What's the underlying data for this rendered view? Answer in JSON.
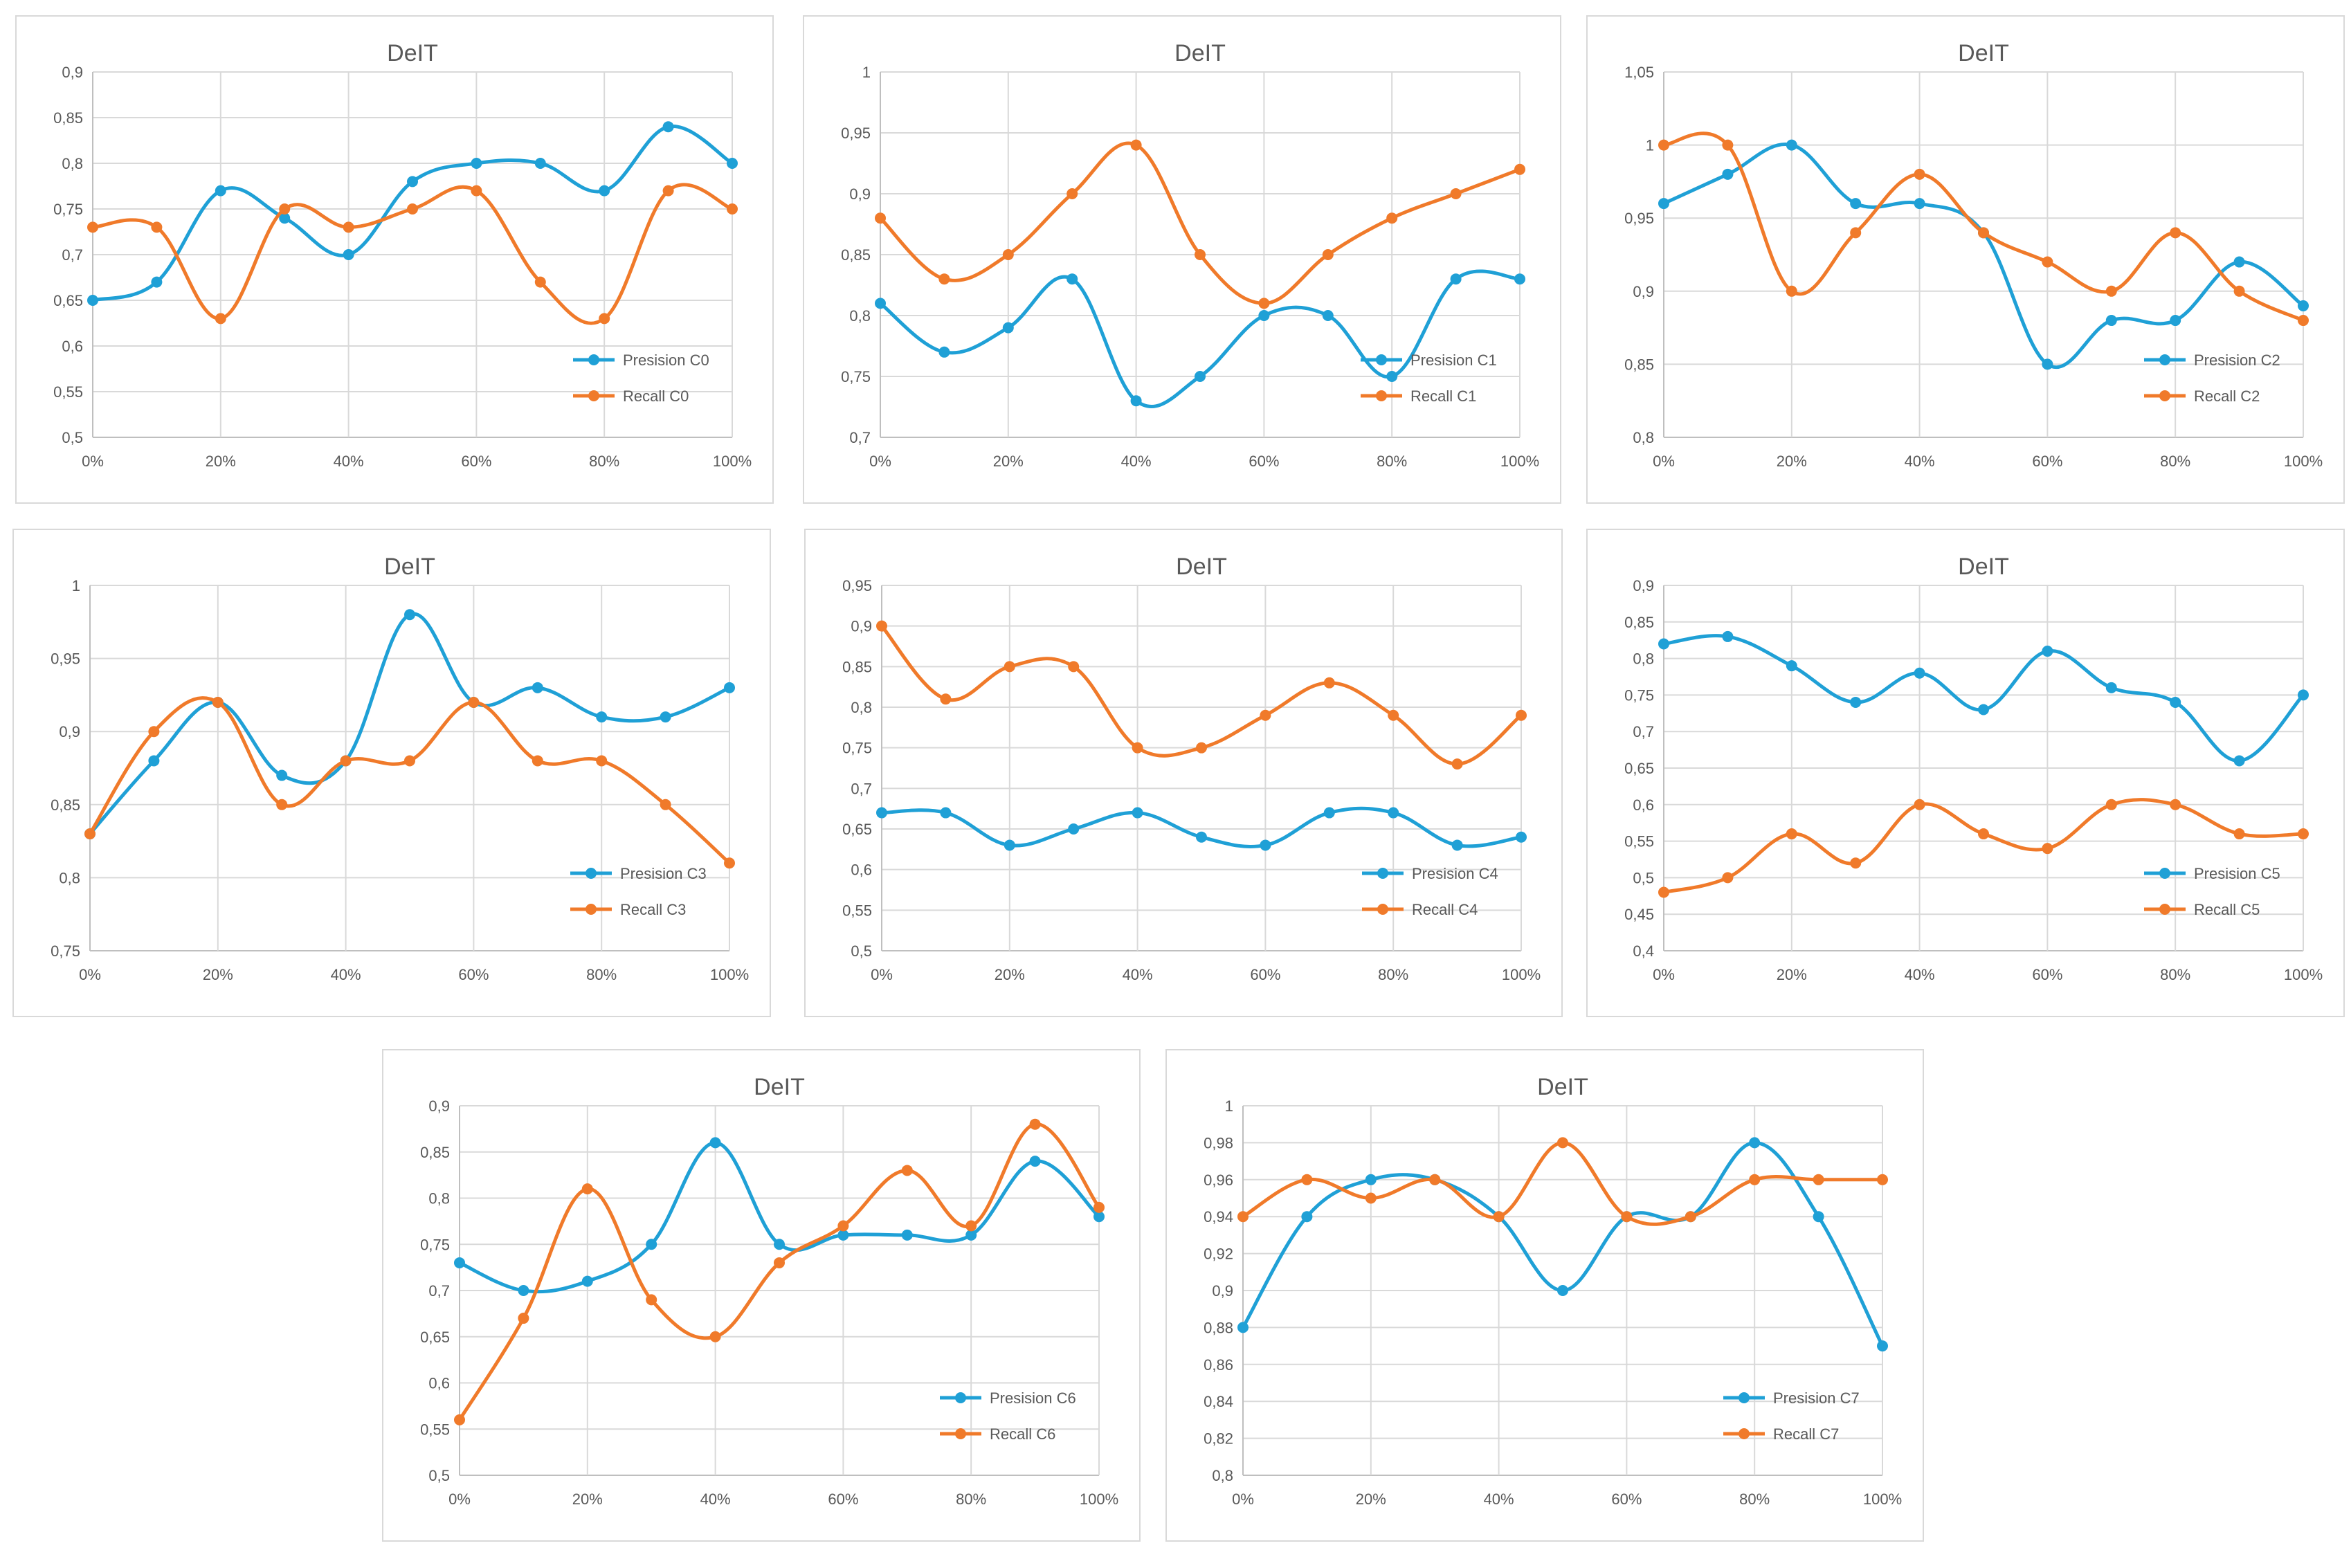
{
  "colors": {
    "precision": "#1fa0d6",
    "recall": "#f07a2a"
  },
  "x_ticks": [
    "0%",
    "20%",
    "40%",
    "60%",
    "80%",
    "100%"
  ],
  "chart_data": [
    {
      "type": "line",
      "title": "DeIT",
      "xlabel": "",
      "ylabel": "",
      "x": [
        0,
        10,
        20,
        30,
        40,
        50,
        60,
        70,
        80,
        90,
        100
      ],
      "xlim": [
        0,
        100
      ],
      "ylim": [
        0.5,
        0.9
      ],
      "yticks": [
        "0,5",
        "0,55",
        "0,6",
        "0,65",
        "0,7",
        "0,75",
        "0,8",
        "0,85",
        "0,9"
      ],
      "legend": "bottom-right",
      "series": [
        {
          "name": "Presision C0",
          "values": [
            0.65,
            0.67,
            0.77,
            0.74,
            0.7,
            0.78,
            0.8,
            0.8,
            0.77,
            0.84,
            0.8
          ]
        },
        {
          "name": "Recall C0",
          "values": [
            0.73,
            0.73,
            0.63,
            0.75,
            0.73,
            0.75,
            0.77,
            0.67,
            0.63,
            0.77,
            0.75
          ]
        }
      ]
    },
    {
      "type": "line",
      "title": "DeIT",
      "xlabel": "",
      "ylabel": "",
      "x": [
        0,
        10,
        20,
        30,
        40,
        50,
        60,
        70,
        80,
        90,
        100
      ],
      "xlim": [
        0,
        100
      ],
      "ylim": [
        0.7,
        1.0
      ],
      "yticks": [
        "0,7",
        "0,75",
        "0,8",
        "0,85",
        "0,9",
        "0,95",
        "1"
      ],
      "legend": "bottom-right",
      "series": [
        {
          "name": "Presision C1",
          "values": [
            0.81,
            0.77,
            0.79,
            0.83,
            0.73,
            0.75,
            0.8,
            0.8,
            0.75,
            0.83,
            0.83
          ]
        },
        {
          "name": "Recall C1",
          "values": [
            0.88,
            0.83,
            0.85,
            0.9,
            0.94,
            0.85,
            0.81,
            0.85,
            0.88,
            0.9,
            0.92
          ]
        }
      ]
    },
    {
      "type": "line",
      "title": "DeIT",
      "xlabel": "",
      "ylabel": "",
      "x": [
        0,
        10,
        20,
        30,
        40,
        50,
        60,
        70,
        80,
        90,
        100
      ],
      "xlim": [
        0,
        100
      ],
      "ylim": [
        0.8,
        1.05
      ],
      "yticks": [
        "0,8",
        "0,85",
        "0,9",
        "0,95",
        "1",
        "1,05"
      ],
      "legend": "bottom-right",
      "series": [
        {
          "name": "Presision C2",
          "values": [
            0.96,
            0.98,
            1.0,
            0.96,
            0.96,
            0.94,
            0.85,
            0.88,
            0.88,
            0.92,
            0.89
          ]
        },
        {
          "name": "Recall C2",
          "values": [
            1.0,
            1.0,
            0.9,
            0.94,
            0.98,
            0.94,
            0.92,
            0.9,
            0.94,
            0.9,
            0.88
          ]
        }
      ]
    },
    {
      "type": "line",
      "title": "DeIT",
      "xlabel": "",
      "ylabel": "",
      "x": [
        0,
        10,
        20,
        30,
        40,
        50,
        60,
        70,
        80,
        90,
        100
      ],
      "xlim": [
        0,
        100
      ],
      "ylim": [
        0.75,
        1.0
      ],
      "yticks": [
        "0,75",
        "0,8",
        "0,85",
        "0,9",
        "0,95",
        "1"
      ],
      "legend": "bottom-right",
      "series": [
        {
          "name": "Presision C3",
          "values": [
            0.83,
            0.88,
            0.92,
            0.87,
            0.88,
            0.98,
            0.92,
            0.93,
            0.91,
            0.91,
            0.93
          ]
        },
        {
          "name": "Recall C3",
          "values": [
            0.83,
            0.9,
            0.92,
            0.85,
            0.88,
            0.88,
            0.92,
            0.88,
            0.88,
            0.85,
            0.81
          ]
        }
      ]
    },
    {
      "type": "line",
      "title": "DeIT",
      "xlabel": "",
      "ylabel": "",
      "x": [
        0,
        10,
        20,
        30,
        40,
        50,
        60,
        70,
        80,
        90,
        100
      ],
      "xlim": [
        0,
        100
      ],
      "ylim": [
        0.5,
        0.95
      ],
      "yticks": [
        "0,5",
        "0,55",
        "0,6",
        "0,65",
        "0,7",
        "0,75",
        "0,8",
        "0,85",
        "0,9",
        "0,95"
      ],
      "legend": "bottom-right",
      "series": [
        {
          "name": "Presision C4",
          "values": [
            0.67,
            0.67,
            0.63,
            0.65,
            0.67,
            0.64,
            0.63,
            0.67,
            0.67,
            0.63,
            0.64
          ]
        },
        {
          "name": "Recall C4",
          "values": [
            0.9,
            0.81,
            0.85,
            0.85,
            0.75,
            0.75,
            0.79,
            0.83,
            0.79,
            0.73,
            0.79
          ]
        }
      ]
    },
    {
      "type": "line",
      "title": "DeIT",
      "xlabel": "",
      "ylabel": "",
      "x": [
        0,
        10,
        20,
        30,
        40,
        50,
        60,
        70,
        80,
        90,
        100
      ],
      "xlim": [
        0,
        100
      ],
      "ylim": [
        0.4,
        0.9
      ],
      "yticks": [
        "0,4",
        "0,45",
        "0,5",
        "0,55",
        "0,6",
        "0,65",
        "0,7",
        "0,75",
        "0,8",
        "0,85",
        "0,9"
      ],
      "legend": "bottom-right",
      "series": [
        {
          "name": "Presision C5",
          "values": [
            0.82,
            0.83,
            0.79,
            0.74,
            0.78,
            0.73,
            0.81,
            0.76,
            0.74,
            0.66,
            0.75
          ]
        },
        {
          "name": "Recall C5",
          "values": [
            0.48,
            0.5,
            0.56,
            0.52,
            0.6,
            0.56,
            0.54,
            0.6,
            0.6,
            0.56,
            0.56
          ]
        }
      ]
    },
    {
      "type": "line",
      "title": "DeIT",
      "xlabel": "",
      "ylabel": "",
      "x": [
        0,
        10,
        20,
        30,
        40,
        50,
        60,
        70,
        80,
        90,
        100
      ],
      "xlim": [
        0,
        100
      ],
      "ylim": [
        0.5,
        0.9
      ],
      "yticks": [
        "0,5",
        "0,55",
        "0,6",
        "0,65",
        "0,7",
        "0,75",
        "0,8",
        "0,85",
        "0,9"
      ],
      "legend": "bottom-right",
      "series": [
        {
          "name": "Presision C6",
          "values": [
            0.73,
            0.7,
            0.71,
            0.75,
            0.86,
            0.75,
            0.76,
            0.76,
            0.76,
            0.84,
            0.78
          ]
        },
        {
          "name": "Recall C6",
          "values": [
            0.56,
            0.67,
            0.81,
            0.69,
            0.65,
            0.73,
            0.77,
            0.83,
            0.77,
            0.88,
            0.79
          ]
        }
      ]
    },
    {
      "type": "line",
      "title": "DeIT",
      "xlabel": "",
      "ylabel": "",
      "x": [
        0,
        10,
        20,
        30,
        40,
        50,
        60,
        70,
        80,
        90,
        100
      ],
      "xlim": [
        0,
        100
      ],
      "ylim": [
        0.8,
        1.0
      ],
      "yticks": [
        "0,8",
        "0,82",
        "0,84",
        "0,86",
        "0,88",
        "0,9",
        "0,92",
        "0,94",
        "0,96",
        "0,98",
        "1"
      ],
      "legend": "bottom-right",
      "series": [
        {
          "name": "Presision C7",
          "values": [
            0.88,
            0.94,
            0.96,
            0.96,
            0.94,
            0.9,
            0.94,
            0.94,
            0.98,
            0.94,
            0.87
          ]
        },
        {
          "name": "Recall C7",
          "values": [
            0.94,
            0.96,
            0.95,
            0.96,
            0.94,
            0.98,
            0.94,
            0.94,
            0.96,
            0.96,
            0.96
          ]
        }
      ]
    }
  ]
}
